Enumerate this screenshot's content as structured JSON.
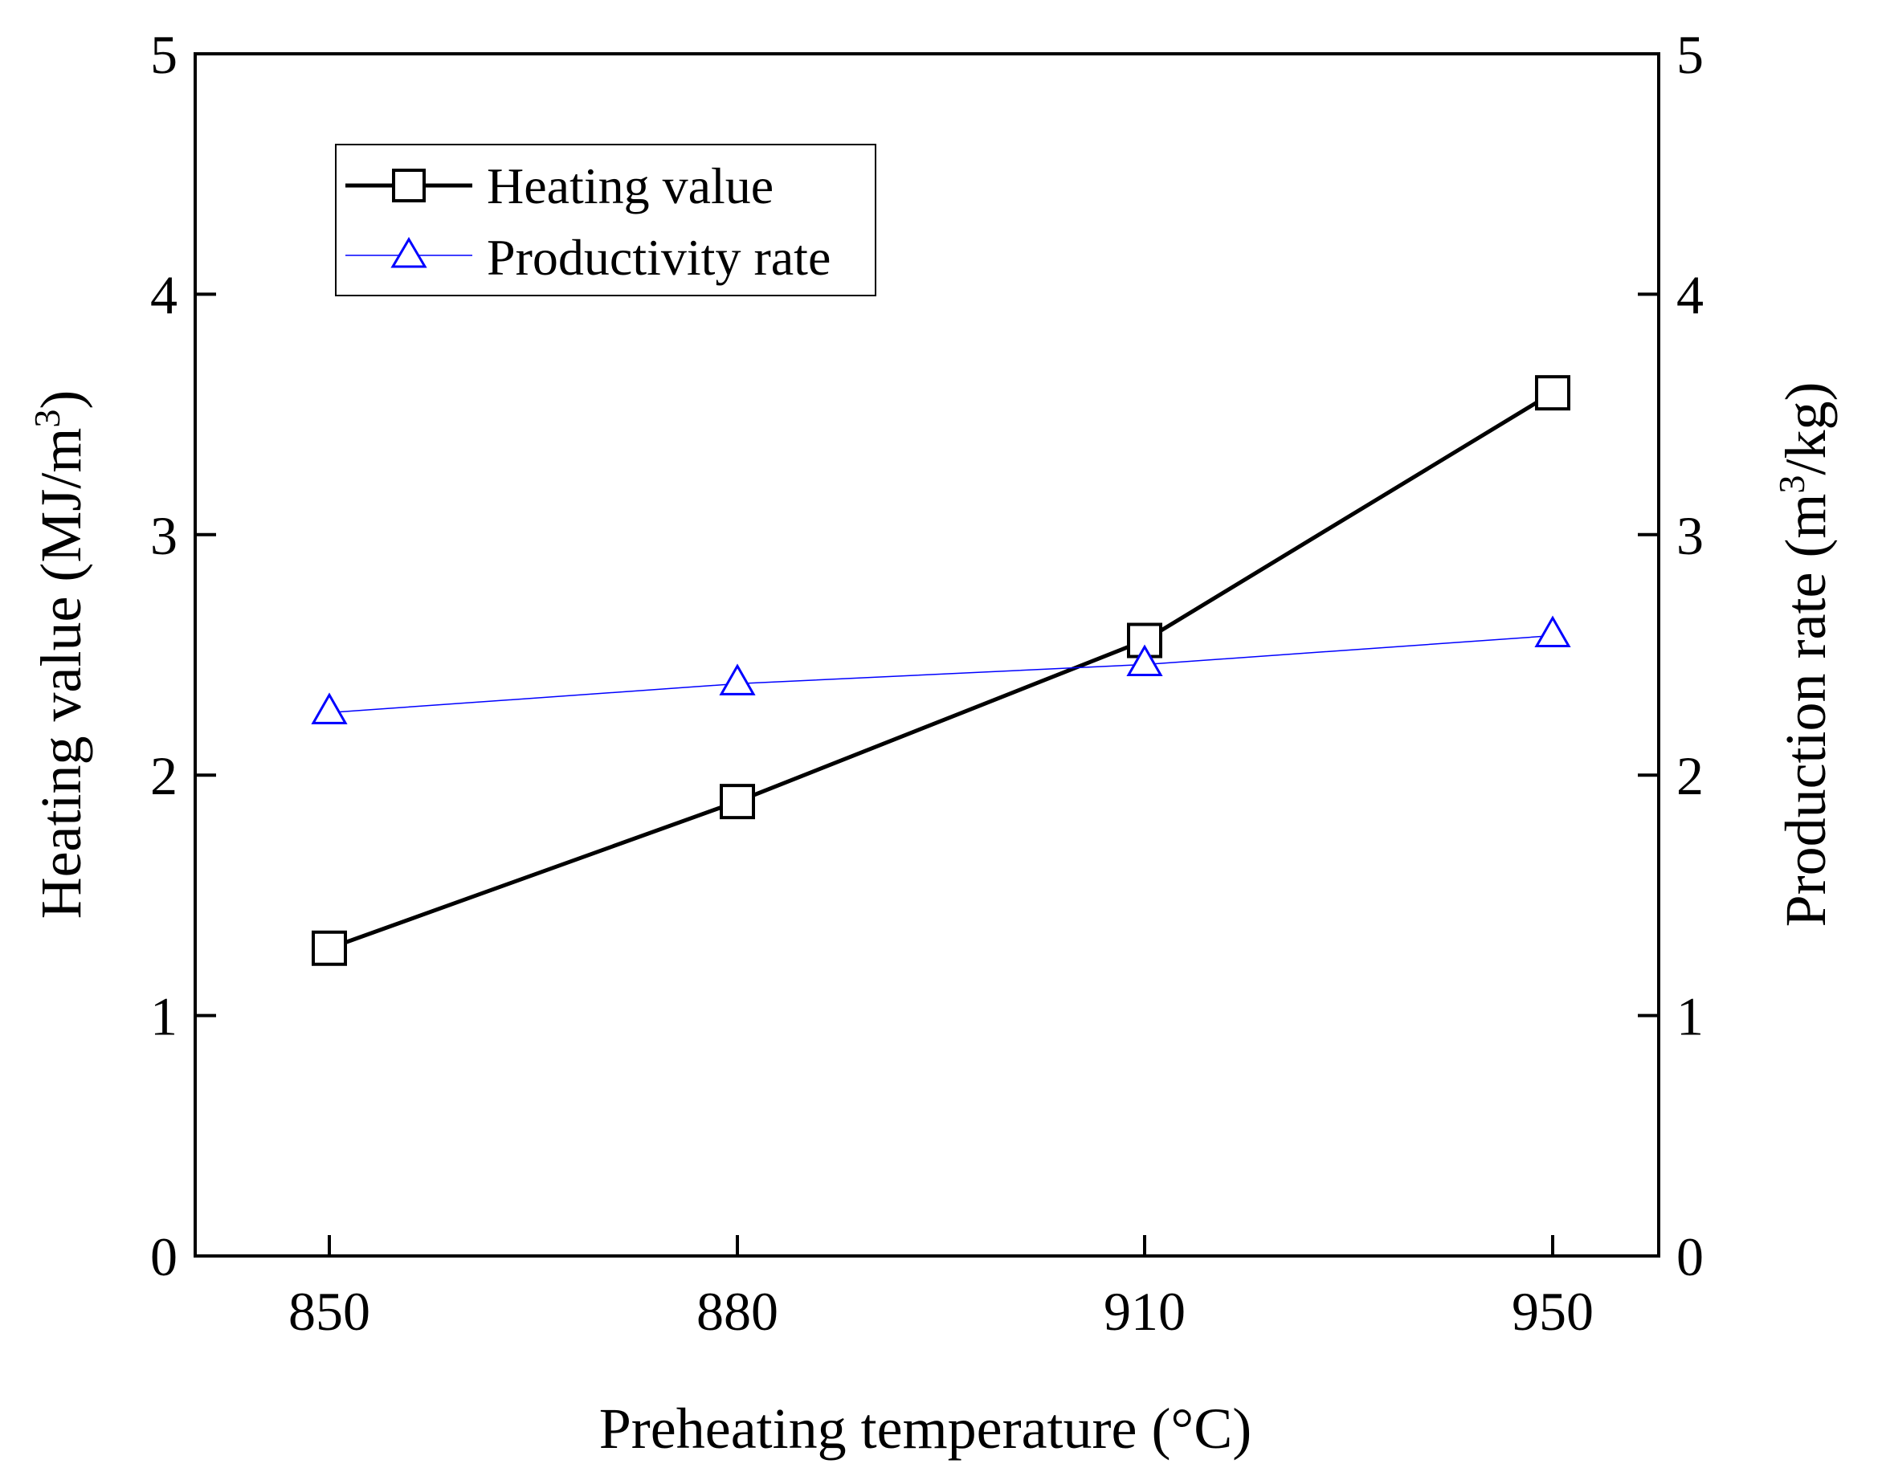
{
  "chart_data": {
    "type": "line",
    "x": [
      850,
      880,
      910,
      950
    ],
    "x_tick_labels": [
      "850",
      "880",
      "910",
      "950"
    ],
    "xlabel": "Preheating temperature (°C)",
    "ylabel_left": {
      "text": "Heating value (MJ/m",
      "superscript": "3",
      "suffix": ")"
    },
    "ylabel_right": {
      "text": "Production rate (m",
      "superscript": "3",
      "suffix": "/kg)"
    },
    "ylim_left": [
      0,
      5
    ],
    "ylim_right": [
      0,
      5
    ],
    "y_ticks_left": [
      "0",
      "1",
      "2",
      "3",
      "4",
      "5"
    ],
    "y_ticks_right": [
      "0",
      "1",
      "2",
      "3",
      "4",
      "5"
    ],
    "grid": false,
    "legend_position": "top-left",
    "series": [
      {
        "name": "Heating value",
        "axis": "left",
        "marker": "square",
        "color": "#000000",
        "values": [
          1.28,
          1.89,
          2.56,
          3.59
        ]
      },
      {
        "name": "Productivity rate",
        "axis": "right",
        "marker": "triangle",
        "color": "#0000ff",
        "values": [
          2.26,
          2.38,
          2.46,
          2.58
        ]
      }
    ]
  }
}
